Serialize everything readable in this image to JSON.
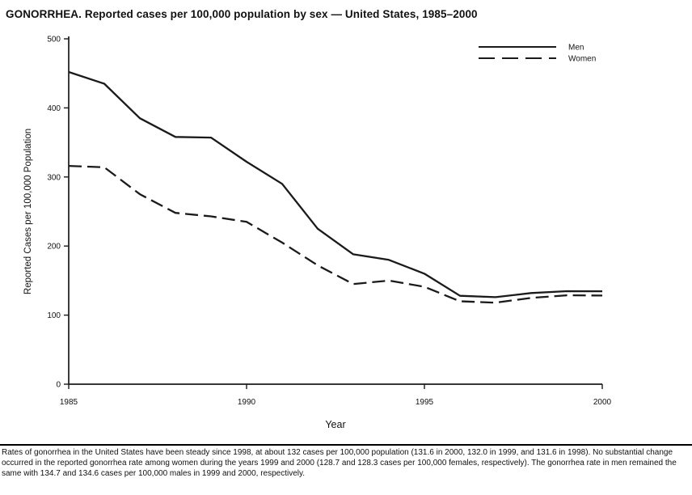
{
  "footnote": {
    "text": "Rates of gonorrhea in the United States have been steady since 1998, at about 132 cases per 100,000 population (131.6 in 2000, 132.0 in 1999, and 131.6 in 1998). No substantial change occurred in the reported gonorrhea rate among women during the years 1999 and 2000 (128.7 and 128.3 cases per 100,000 females, respectively). The gonorrhea rate in men remained the same with 134.7 and 134.6 cases per 100,000 males in 1999 and 2000, respectively."
  },
  "chart_data": {
    "type": "line",
    "title": "GONORRHEA. Reported cases per 100,000 population by sex — United States, 1985–2000",
    "xlabel": "Year",
    "ylabel": "Reported Cases per 100,000 Population",
    "x": [
      1985,
      1986,
      1987,
      1988,
      1989,
      1990,
      1991,
      1992,
      1993,
      1994,
      1995,
      1996,
      1997,
      1998,
      1999,
      2000
    ],
    "series": [
      {
        "name": "Men",
        "style": "solid",
        "values": [
          452,
          435,
          385,
          358,
          357,
          322,
          290,
          225,
          188,
          180,
          160,
          128,
          126,
          132,
          134.7,
          134.6
        ]
      },
      {
        "name": "Women",
        "style": "dashed",
        "values": [
          316,
          314,
          275,
          248,
          243,
          235,
          205,
          172,
          145,
          150,
          141,
          120,
          118,
          125,
          128.7,
          128.3
        ]
      }
    ],
    "xlim": [
      1985,
      2000
    ],
    "ylim": [
      0,
      500
    ],
    "xticks": [
      1985,
      1990,
      1995,
      2000
    ],
    "yticks": [
      0,
      100,
      200,
      300,
      400,
      500
    ],
    "grid": false,
    "legend_position": "top-right",
    "line_color": "#1a1a1a"
  }
}
